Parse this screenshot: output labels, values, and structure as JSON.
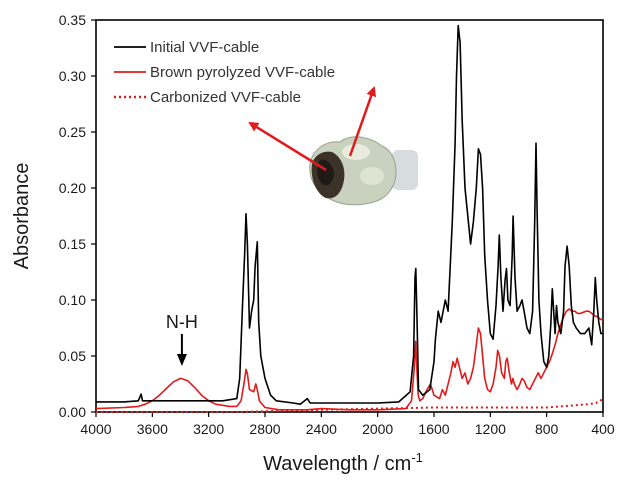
{
  "chart_data": {
    "type": "line",
    "xlabel": "Wavelength / cm",
    "xlabel_superscript": "-1",
    "ylabel": "Absorbance",
    "xlim": [
      4000,
      400
    ],
    "ylim": [
      0,
      0.35
    ],
    "x_reversed": true,
    "x_ticks": [
      "4000",
      "3600",
      "3200",
      "2800",
      "2400",
      "2000",
      "1600",
      "1200",
      "800",
      "400"
    ],
    "y_ticks": [
      "0.00",
      "0.05",
      "0.10",
      "0.15",
      "0.20",
      "0.25",
      "0.30",
      "0.35"
    ],
    "grid": false,
    "legend_position": "top-left",
    "annotation": {
      "text": "N-H",
      "x": 3390,
      "y": 0.031
    },
    "image_description_note": "",
    "series": [
      {
        "name": "Initial VVF-cable",
        "color": "#000000",
        "style": "solid",
        "points": [
          [
            4000,
            0.009
          ],
          [
            3800,
            0.009
          ],
          [
            3700,
            0.01
          ],
          [
            3680,
            0.016
          ],
          [
            3670,
            0.01
          ],
          [
            3400,
            0.01
          ],
          [
            3100,
            0.01
          ],
          [
            3000,
            0.012
          ],
          [
            2980,
            0.03
          ],
          [
            2960,
            0.095
          ],
          [
            2945,
            0.14
          ],
          [
            2935,
            0.177
          ],
          [
            2925,
            0.15
          ],
          [
            2910,
            0.075
          ],
          [
            2895,
            0.09
          ],
          [
            2880,
            0.1
          ],
          [
            2870,
            0.13
          ],
          [
            2855,
            0.152
          ],
          [
            2845,
            0.08
          ],
          [
            2830,
            0.05
          ],
          [
            2800,
            0.03
          ],
          [
            2760,
            0.015
          ],
          [
            2720,
            0.01
          ],
          [
            2600,
            0.008
          ],
          [
            2550,
            0.007
          ],
          [
            2500,
            0.012
          ],
          [
            2480,
            0.008
          ],
          [
            2400,
            0.008
          ],
          [
            2200,
            0.008
          ],
          [
            2000,
            0.008
          ],
          [
            1850,
            0.009
          ],
          [
            1770,
            0.018
          ],
          [
            1745,
            0.05
          ],
          [
            1735,
            0.12
          ],
          [
            1729,
            0.128
          ],
          [
            1720,
            0.08
          ],
          [
            1710,
            0.02
          ],
          [
            1680,
            0.015
          ],
          [
            1630,
            0.02
          ],
          [
            1600,
            0.045
          ],
          [
            1590,
            0.065
          ],
          [
            1570,
            0.09
          ],
          [
            1550,
            0.08
          ],
          [
            1520,
            0.1
          ],
          [
            1500,
            0.09
          ],
          [
            1470,
            0.17
          ],
          [
            1450,
            0.24
          ],
          [
            1440,
            0.3
          ],
          [
            1428,
            0.345
          ],
          [
            1415,
            0.33
          ],
          [
            1400,
            0.26
          ],
          [
            1380,
            0.2
          ],
          [
            1360,
            0.175
          ],
          [
            1340,
            0.15
          ],
          [
            1320,
            0.17
          ],
          [
            1300,
            0.2
          ],
          [
            1285,
            0.235
          ],
          [
            1270,
            0.23
          ],
          [
            1255,
            0.2
          ],
          [
            1240,
            0.14
          ],
          [
            1220,
            0.1
          ],
          [
            1200,
            0.07
          ],
          [
            1180,
            0.065
          ],
          [
            1160,
            0.095
          ],
          [
            1145,
            0.13
          ],
          [
            1136,
            0.158
          ],
          [
            1125,
            0.12
          ],
          [
            1110,
            0.09
          ],
          [
            1095,
            0.118
          ],
          [
            1085,
            0.128
          ],
          [
            1075,
            0.1
          ],
          [
            1060,
            0.095
          ],
          [
            1045,
            0.14
          ],
          [
            1038,
            0.175
          ],
          [
            1025,
            0.12
          ],
          [
            1010,
            0.09
          ],
          [
            990,
            0.095
          ],
          [
            975,
            0.1
          ],
          [
            960,
            0.09
          ],
          [
            940,
            0.075
          ],
          [
            920,
            0.07
          ],
          [
            900,
            0.09
          ],
          [
            885,
            0.17
          ],
          [
            876,
            0.24
          ],
          [
            868,
            0.18
          ],
          [
            855,
            0.1
          ],
          [
            840,
            0.07
          ],
          [
            820,
            0.045
          ],
          [
            800,
            0.04
          ],
          [
            785,
            0.05
          ],
          [
            770,
            0.08
          ],
          [
            760,
            0.11
          ],
          [
            750,
            0.09
          ],
          [
            740,
            0.07
          ],
          [
            730,
            0.095
          ],
          [
            720,
            0.08
          ],
          [
            700,
            0.07
          ],
          [
            680,
            0.09
          ],
          [
            670,
            0.13
          ],
          [
            655,
            0.148
          ],
          [
            640,
            0.13
          ],
          [
            625,
            0.095
          ],
          [
            610,
            0.08
          ],
          [
            590,
            0.075
          ],
          [
            560,
            0.07
          ],
          [
            530,
            0.07
          ],
          [
            500,
            0.075
          ],
          [
            480,
            0.06
          ],
          [
            465,
            0.09
          ],
          [
            455,
            0.12
          ],
          [
            445,
            0.1
          ],
          [
            430,
            0.08
          ],
          [
            415,
            0.07
          ],
          [
            400,
            0.07
          ]
        ]
      },
      {
        "name": "Brown pyrolyzed VVF-cable",
        "color": "#e11b1b",
        "style": "solid",
        "points": [
          [
            4000,
            0.003
          ],
          [
            3800,
            0.004
          ],
          [
            3700,
            0.005
          ],
          [
            3650,
            0.007
          ],
          [
            3600,
            0.01
          ],
          [
            3550,
            0.015
          ],
          [
            3500,
            0.021
          ],
          [
            3450,
            0.027
          ],
          [
            3400,
            0.03
          ],
          [
            3350,
            0.028
          ],
          [
            3300,
            0.022
          ],
          [
            3250,
            0.015
          ],
          [
            3200,
            0.01
          ],
          [
            3150,
            0.007
          ],
          [
            3050,
            0.005
          ],
          [
            3000,
            0.005
          ],
          [
            2970,
            0.01
          ],
          [
            2950,
            0.025
          ],
          [
            2935,
            0.038
          ],
          [
            2925,
            0.034
          ],
          [
            2910,
            0.02
          ],
          [
            2880,
            0.018
          ],
          [
            2865,
            0.025
          ],
          [
            2855,
            0.02
          ],
          [
            2840,
            0.01
          ],
          [
            2800,
            0.004
          ],
          [
            2700,
            0.002
          ],
          [
            2500,
            0.002
          ],
          [
            2400,
            0.003
          ],
          [
            2200,
            0.002
          ],
          [
            2000,
            0.002
          ],
          [
            1800,
            0.003
          ],
          [
            1760,
            0.01
          ],
          [
            1740,
            0.04
          ],
          [
            1730,
            0.063
          ],
          [
            1722,
            0.04
          ],
          [
            1712,
            0.015
          ],
          [
            1700,
            0.01
          ],
          [
            1680,
            0.012
          ],
          [
            1650,
            0.02
          ],
          [
            1625,
            0.025
          ],
          [
            1600,
            0.015
          ],
          [
            1560,
            0.012
          ],
          [
            1540,
            0.02
          ],
          [
            1520,
            0.015
          ],
          [
            1500,
            0.025
          ],
          [
            1480,
            0.035
          ],
          [
            1465,
            0.045
          ],
          [
            1450,
            0.04
          ],
          [
            1435,
            0.048
          ],
          [
            1420,
            0.04
          ],
          [
            1400,
            0.03
          ],
          [
            1380,
            0.035
          ],
          [
            1360,
            0.025
          ],
          [
            1340,
            0.03
          ],
          [
            1320,
            0.04
          ],
          [
            1300,
            0.06
          ],
          [
            1285,
            0.075
          ],
          [
            1270,
            0.07
          ],
          [
            1255,
            0.05
          ],
          [
            1240,
            0.03
          ],
          [
            1220,
            0.02
          ],
          [
            1200,
            0.018
          ],
          [
            1180,
            0.025
          ],
          [
            1160,
            0.04
          ],
          [
            1148,
            0.055
          ],
          [
            1135,
            0.05
          ],
          [
            1120,
            0.035
          ],
          [
            1100,
            0.03
          ],
          [
            1090,
            0.045
          ],
          [
            1080,
            0.048
          ],
          [
            1065,
            0.035
          ],
          [
            1050,
            0.025
          ],
          [
            1040,
            0.03
          ],
          [
            1030,
            0.025
          ],
          [
            1010,
            0.02
          ],
          [
            990,
            0.025
          ],
          [
            975,
            0.03
          ],
          [
            960,
            0.028
          ],
          [
            940,
            0.022
          ],
          [
            920,
            0.02
          ],
          [
            900,
            0.025
          ],
          [
            880,
            0.03
          ],
          [
            860,
            0.035
          ],
          [
            840,
            0.03
          ],
          [
            820,
            0.035
          ],
          [
            800,
            0.04
          ],
          [
            780,
            0.045
          ],
          [
            760,
            0.052
          ],
          [
            740,
            0.06
          ],
          [
            720,
            0.07
          ],
          [
            700,
            0.078
          ],
          [
            680,
            0.085
          ],
          [
            660,
            0.09
          ],
          [
            640,
            0.092
          ],
          [
            620,
            0.09
          ],
          [
            600,
            0.09
          ],
          [
            580,
            0.088
          ],
          [
            560,
            0.088
          ],
          [
            540,
            0.089
          ],
          [
            520,
            0.09
          ],
          [
            500,
            0.09
          ],
          [
            480,
            0.088
          ],
          [
            460,
            0.086
          ],
          [
            440,
            0.085
          ],
          [
            420,
            0.083
          ],
          [
            400,
            0.082
          ]
        ]
      },
      {
        "name": "Carbonized VVF-cable",
        "color": "#e11b1b",
        "style": "dotted",
        "points": [
          [
            4000,
            0.0
          ],
          [
            3000,
            0.0
          ],
          [
            2400,
            0.002
          ],
          [
            2000,
            0.003
          ],
          [
            1600,
            0.004
          ],
          [
            1200,
            0.004
          ],
          [
            1000,
            0.004
          ],
          [
            800,
            0.004
          ],
          [
            700,
            0.005
          ],
          [
            600,
            0.006
          ],
          [
            500,
            0.007
          ],
          [
            450,
            0.008
          ],
          [
            420,
            0.01
          ],
          [
            400,
            0.012
          ]
        ]
      }
    ]
  }
}
